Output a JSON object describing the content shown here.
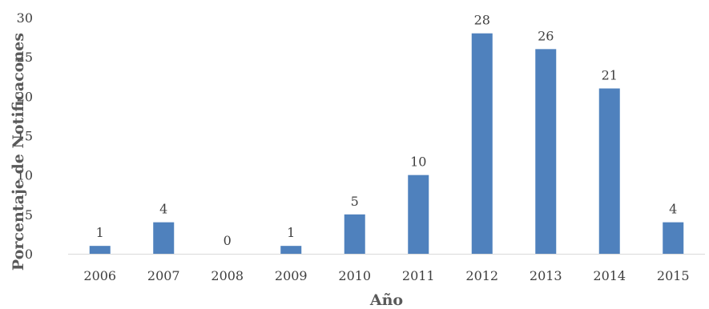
{
  "chart_data": {
    "type": "bar",
    "categories": [
      "2006",
      "2007",
      "2008",
      "2009",
      "2010",
      "2011",
      "2012",
      "2013",
      "2014",
      "2015"
    ],
    "values": [
      1,
      4,
      0,
      1,
      5,
      10,
      28,
      26,
      21,
      4
    ],
    "data_labels": [
      "1",
      "4",
      "0",
      "1",
      "5",
      "10",
      "28",
      "26",
      "21",
      "4"
    ],
    "xlabel": "Año",
    "ylabel": "Porcentaje de Notificacones",
    "ylim": [
      0,
      30
    ],
    "yticks": [
      "0",
      "5",
      "10",
      "15",
      "20",
      "25",
      "30"
    ],
    "grid": false,
    "legend": "none",
    "bar_color": "#4f81bd",
    "axis_color": "#d9d9d9"
  }
}
